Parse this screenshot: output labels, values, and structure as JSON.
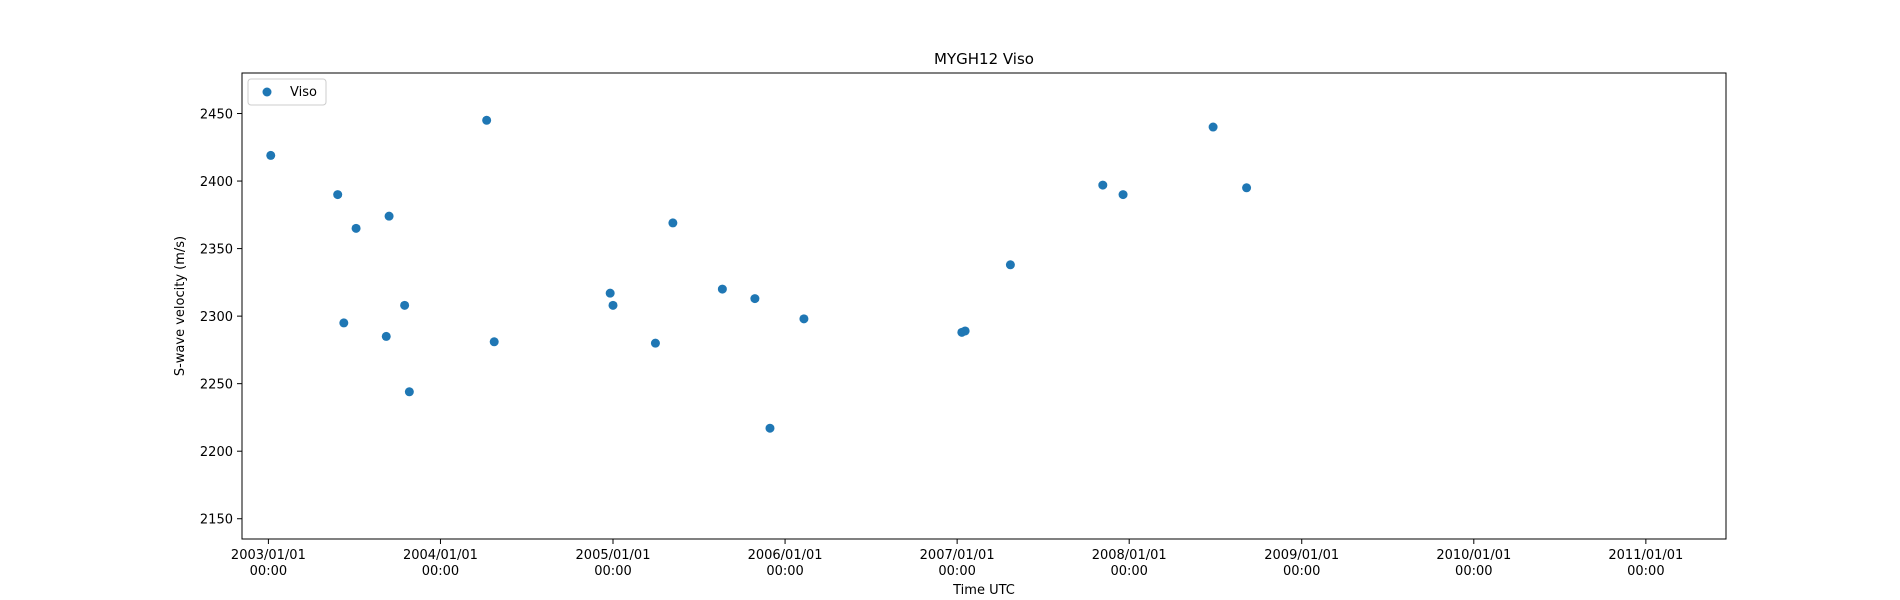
{
  "chart_data": {
    "type": "scatter",
    "title": "MYGH12 Viso",
    "xlabel": "Time UTC",
    "ylabel": "S-wave velocity (m/s)",
    "xlim": [
      "2002-11-06",
      "2011-06-20"
    ],
    "ylim": [
      2135,
      2480
    ],
    "x_ticks": [
      {
        "date": "2003-01-01",
        "line1": "2003/01/01",
        "line2": "00:00"
      },
      {
        "date": "2004-01-01",
        "line1": "2004/01/01",
        "line2": "00:00"
      },
      {
        "date": "2005-01-01",
        "line1": "2005/01/01",
        "line2": "00:00"
      },
      {
        "date": "2006-01-01",
        "line1": "2006/01/01",
        "line2": "00:00"
      },
      {
        "date": "2007-01-01",
        "line1": "2007/01/01",
        "line2": "00:00"
      },
      {
        "date": "2008-01-01",
        "line1": "2008/01/01",
        "line2": "00:00"
      },
      {
        "date": "2009-01-01",
        "line1": "2009/01/01",
        "line2": "00:00"
      },
      {
        "date": "2010-01-01",
        "line1": "2010/01/01",
        "line2": "00:00"
      },
      {
        "date": "2011-01-01",
        "line1": "2011/01/01",
        "line2": "00:00"
      }
    ],
    "y_ticks": [
      2150,
      2200,
      2250,
      2300,
      2350,
      2400,
      2450
    ],
    "grid": false,
    "legend": {
      "position": "top-left",
      "entries": [
        "Viso"
      ]
    },
    "color": "#1f77b4",
    "series": [
      {
        "name": "Viso",
        "points": [
          {
            "x": "2003-01-06",
            "y": 2419
          },
          {
            "x": "2003-05-28",
            "y": 2390
          },
          {
            "x": "2003-06-10",
            "y": 2295
          },
          {
            "x": "2003-07-06",
            "y": 2365
          },
          {
            "x": "2003-09-08",
            "y": 2285
          },
          {
            "x": "2003-09-14",
            "y": 2374
          },
          {
            "x": "2003-10-17",
            "y": 2308
          },
          {
            "x": "2003-10-27",
            "y": 2244
          },
          {
            "x": "2004-04-08",
            "y": 2445
          },
          {
            "x": "2004-04-24",
            "y": 2281
          },
          {
            "x": "2004-12-26",
            "y": 2317
          },
          {
            "x": "2005-01-01",
            "y": 2308
          },
          {
            "x": "2005-04-01",
            "y": 2280
          },
          {
            "x": "2005-05-08",
            "y": 2369
          },
          {
            "x": "2005-08-21",
            "y": 2320
          },
          {
            "x": "2005-10-29",
            "y": 2313
          },
          {
            "x": "2005-11-30",
            "y": 2217
          },
          {
            "x": "2006-02-10",
            "y": 2298
          },
          {
            "x": "2007-01-11",
            "y": 2288
          },
          {
            "x": "2007-01-18",
            "y": 2289
          },
          {
            "x": "2007-04-24",
            "y": 2338
          },
          {
            "x": "2007-11-06",
            "y": 2397
          },
          {
            "x": "2007-12-19",
            "y": 2390
          },
          {
            "x": "2008-06-27",
            "y": 2440
          },
          {
            "x": "2008-09-06",
            "y": 2395
          }
        ]
      }
    ]
  }
}
